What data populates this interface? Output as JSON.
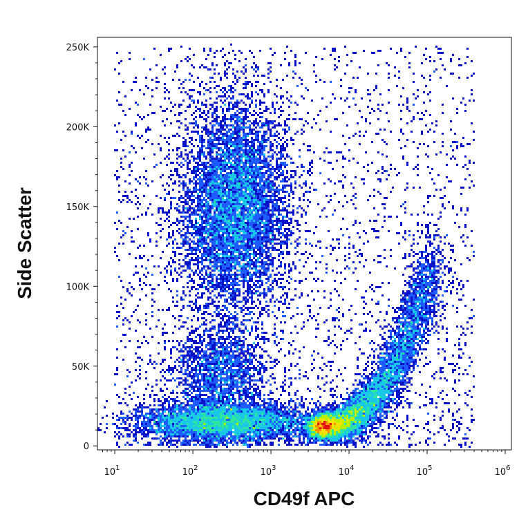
{
  "chart_data": {
    "type": "scatter",
    "subtype": "flow-cytometry-density-dot-plot",
    "xlabel": "CD49f APC",
    "ylabel": "Side Scatter",
    "x_scale": "log",
    "xlim": [
      6,
      1200000
    ],
    "ylim": [
      -2500,
      256000
    ],
    "x_ticks": [
      {
        "value": 10,
        "base": "10",
        "exp": "1"
      },
      {
        "value": 100,
        "base": "10",
        "exp": "2"
      },
      {
        "value": 1000,
        "base": "10",
        "exp": "3"
      },
      {
        "value": 10000,
        "base": "10",
        "exp": "4"
      },
      {
        "value": 100000,
        "base": "10",
        "exp": "5"
      },
      {
        "value": 1000000,
        "base": "10",
        "exp": "6"
      }
    ],
    "y_ticks": [
      {
        "value": 0,
        "label": "0"
      },
      {
        "value": 50000,
        "label": "50K"
      },
      {
        "value": 100000,
        "label": "100K"
      },
      {
        "value": 150000,
        "label": "150K"
      },
      {
        "value": 200000,
        "label": "200K"
      },
      {
        "value": 250000,
        "label": "250K"
      }
    ],
    "grid": false,
    "colormap": [
      "#0a12c8",
      "#1f5cff",
      "#19c8e6",
      "#2ee6a0",
      "#b8f000",
      "#ffe000",
      "#ff8a00",
      "#e01010"
    ],
    "populations": [
      {
        "id": "high-ssc-cluster",
        "x_center": 350,
        "y_center": 150000,
        "x_spread_log10": 0.34,
        "y_spread": 33000,
        "weight": 0.28
      },
      {
        "id": "low-ssc-band",
        "x_center": 250,
        "y_center": 15000,
        "x_spread_log10": 0.55,
        "y_spread": 6000,
        "weight": 0.2
      },
      {
        "id": "mid-column",
        "x_center": 230,
        "y_center": 45000,
        "x_spread_log10": 0.3,
        "y_spread": 15000,
        "weight": 0.07
      },
      {
        "id": "cd49f-positive-curve",
        "x_range": [
          4000,
          120000
        ],
        "y_range": [
          12000,
          115000
        ],
        "weight": 0.33
      },
      {
        "id": "sparse-background",
        "x_range": [
          10,
          400000
        ],
        "y_range": [
          0,
          250000
        ],
        "weight": 0.12
      }
    ]
  }
}
